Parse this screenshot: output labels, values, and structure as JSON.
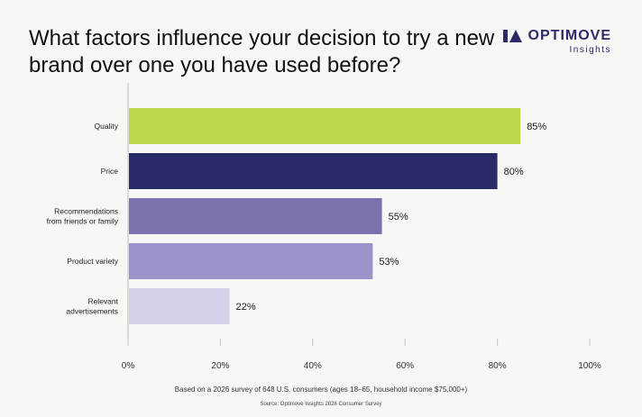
{
  "header": {
    "title": "What factors influence your decision to try a new brand over one you have used before?",
    "logo_name": "OPTIMOVE",
    "logo_sub": "Insights",
    "brand_color": "#2d2a6b"
  },
  "chart_data": {
    "type": "bar",
    "orientation": "horizontal",
    "title": "What factors influence your decision to try a new brand over one you have used before?",
    "categories": [
      "Quality",
      "Price",
      "Recommendations from friends or family",
      "Product variety",
      "Relevant advertisements"
    ],
    "category_lines": [
      [
        "Quality"
      ],
      [
        "Price"
      ],
      [
        "Recommendations",
        "from friends or family"
      ],
      [
        "Product variety"
      ],
      [
        "Relevant",
        "advertisements"
      ]
    ],
    "values": [
      85,
      80,
      55,
      53,
      22
    ],
    "value_labels": [
      "85%",
      "80%",
      "55%",
      "53%",
      "22%"
    ],
    "colors": [
      "#bcd84f",
      "#2b2a69",
      "#7b73ad",
      "#9b94cb",
      "#d4d2ea"
    ],
    "xlim": [
      0,
      100
    ],
    "xticks": [
      0,
      20,
      40,
      60,
      80,
      100
    ],
    "xtick_labels": [
      "0%",
      "20%",
      "40%",
      "60%",
      "80%",
      "100%"
    ],
    "xlabel": "",
    "ylabel": "",
    "grid": false
  },
  "footer": {
    "note": "Based on a 2026 survey of 648 U.S. consumers (ages 18–65, household income $75,000+)",
    "source": "Source: Optimove Insights 2026 Consumer Survey"
  }
}
